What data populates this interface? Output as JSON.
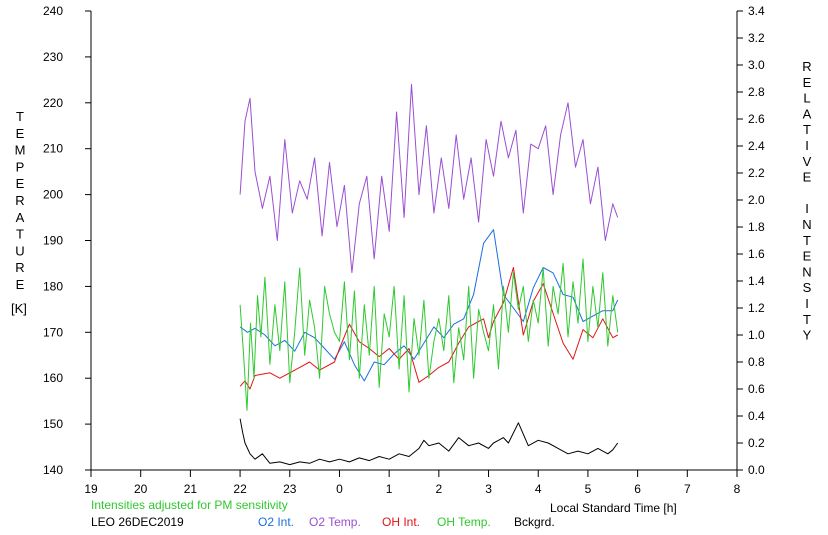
{
  "chart_data": {
    "type": "line",
    "y_left_label_letters": [
      "T",
      "E",
      "M",
      "P",
      "E",
      "R",
      "A",
      "T",
      "U",
      "R",
      "E"
    ],
    "y_left_unit": "[K]",
    "y_right_label_letters": [
      "R",
      "E",
      "L",
      "A",
      "T",
      "I",
      "V",
      "E",
      "",
      "I",
      "N",
      "T",
      "E",
      "N",
      "S",
      "I",
      "T",
      "Y"
    ],
    "xlabel": "Local Standard Time [h]",
    "note": "Intensities adjusted for PM sensitivity",
    "station_date": "LEO 26DEC2019",
    "x_ticks": [
      "19",
      "20",
      "21",
      "22",
      "23",
      "0",
      "1",
      "2",
      "3",
      "4",
      "5",
      "6",
      "7",
      "8"
    ],
    "y_left_ticks": [
      "140",
      "150",
      "160",
      "170",
      "180",
      "190",
      "200",
      "210",
      "220",
      "230",
      "240"
    ],
    "y_right_ticks": [
      "0.0",
      "0.2",
      "0.4",
      "0.6",
      "0.8",
      "1.0",
      "1.2",
      "1.4",
      "1.6",
      "1.8",
      "2.0",
      "2.2",
      "2.4",
      "2.6",
      "2.8",
      "3.0",
      "3.2",
      "3.4"
    ],
    "xlim_hours_since_19": [
      0,
      13
    ],
    "ylim_left": [
      140,
      240
    ],
    "ylim_right": [
      0,
      3.4
    ],
    "grid": false,
    "series": [
      {
        "name": "O2 Int.",
        "axis": "right",
        "color": "#1a6fe0",
        "x": [
          3.0,
          3.15,
          3.3,
          3.5,
          3.7,
          3.9,
          4.1,
          4.3,
          4.5,
          4.7,
          4.9,
          5.1,
          5.3,
          5.5,
          5.7,
          5.9,
          6.1,
          6.3,
          6.5,
          6.7,
          6.9,
          7.1,
          7.3,
          7.5,
          7.7,
          7.9,
          8.1,
          8.3,
          8.5,
          8.7,
          8.9,
          9.1,
          9.3,
          9.5,
          9.7,
          9.9,
          10.1,
          10.3,
          10.5,
          10.6
        ],
        "y": [
          1.06,
          1.02,
          1.05,
          1.0,
          0.92,
          0.96,
          0.88,
          1.02,
          0.98,
          0.9,
          0.82,
          0.95,
          0.78,
          0.66,
          0.8,
          0.78,
          0.86,
          0.92,
          0.82,
          0.94,
          1.06,
          0.98,
          1.08,
          1.12,
          1.3,
          1.68,
          1.78,
          1.3,
          1.2,
          1.1,
          1.35,
          1.5,
          1.46,
          1.3,
          1.28,
          1.1,
          1.14,
          1.18,
          1.18,
          1.26
        ]
      },
      {
        "name": "O2 Temp.",
        "axis": "left",
        "color": "#9a4fd2",
        "x": [
          3.0,
          3.1,
          3.2,
          3.3,
          3.45,
          3.6,
          3.75,
          3.9,
          4.05,
          4.2,
          4.35,
          4.5,
          4.65,
          4.8,
          4.95,
          5.1,
          5.25,
          5.4,
          5.55,
          5.7,
          5.85,
          6.0,
          6.15,
          6.3,
          6.45,
          6.6,
          6.75,
          6.9,
          7.05,
          7.2,
          7.35,
          7.5,
          7.65,
          7.8,
          7.95,
          8.1,
          8.25,
          8.4,
          8.55,
          8.7,
          8.85,
          9.0,
          9.15,
          9.3,
          9.45,
          9.6,
          9.75,
          9.9,
          10.05,
          10.2,
          10.35,
          10.5,
          10.6
        ],
        "y": [
          200,
          216,
          221,
          205,
          197,
          204,
          190,
          212,
          196,
          203,
          199,
          208,
          191,
          207,
          193,
          202,
          183,
          198,
          204,
          186,
          204,
          192,
          218,
          195,
          224,
          200,
          215,
          196,
          208,
          197,
          213,
          199,
          208,
          194,
          212,
          204,
          216,
          208,
          214,
          196,
          211,
          210,
          215,
          200,
          213,
          220,
          206,
          212,
          198,
          206,
          190,
          198,
          195
        ]
      },
      {
        "name": "OH Int.",
        "axis": "right",
        "color": "#e01515",
        "x": [
          3.0,
          3.1,
          3.2,
          3.3,
          3.6,
          3.8,
          4.0,
          4.2,
          4.4,
          4.6,
          4.9,
          5.0,
          5.2,
          5.4,
          5.6,
          5.8,
          6.0,
          6.2,
          6.4,
          6.6,
          6.8,
          7.0,
          7.2,
          7.4,
          7.6,
          7.8,
          7.9,
          8.0,
          8.1,
          8.3,
          8.5,
          8.7,
          8.9,
          9.1,
          9.3,
          9.5,
          9.7,
          9.9,
          10.1,
          10.3,
          10.5,
          10.6
        ],
        "y": [
          0.62,
          0.66,
          0.6,
          0.7,
          0.72,
          0.68,
          0.72,
          0.76,
          0.8,
          0.74,
          0.8,
          0.9,
          1.08,
          0.95,
          0.9,
          0.84,
          0.9,
          0.82,
          0.9,
          0.65,
          0.7,
          0.76,
          0.8,
          0.94,
          1.06,
          1.1,
          1.12,
          0.98,
          1.1,
          1.24,
          1.5,
          1.0,
          1.25,
          1.38,
          1.16,
          0.94,
          0.82,
          1.04,
          0.98,
          1.12,
          0.98,
          1.0
        ]
      },
      {
        "name": "OH Temp.",
        "axis": "left",
        "color": "#2fc92f",
        "x": [
          3.0,
          3.07,
          3.14,
          3.21,
          3.28,
          3.35,
          3.42,
          3.5,
          3.6,
          3.7,
          3.8,
          3.9,
          4.0,
          4.1,
          4.2,
          4.3,
          4.4,
          4.5,
          4.6,
          4.7,
          4.8,
          4.9,
          5.0,
          5.1,
          5.2,
          5.3,
          5.4,
          5.5,
          5.6,
          5.7,
          5.8,
          5.9,
          6.0,
          6.1,
          6.2,
          6.3,
          6.4,
          6.5,
          6.6,
          6.7,
          6.8,
          6.9,
          7.0,
          7.1,
          7.2,
          7.3,
          7.4,
          7.5,
          7.6,
          7.7,
          7.8,
          7.9,
          8.0,
          8.1,
          8.2,
          8.3,
          8.4,
          8.5,
          8.6,
          8.7,
          8.8,
          8.9,
          9.0,
          9.1,
          9.2,
          9.3,
          9.4,
          9.5,
          9.6,
          9.7,
          9.8,
          9.9,
          10.0,
          10.1,
          10.2,
          10.3,
          10.4,
          10.5,
          10.6
        ],
        "y": [
          176,
          165,
          153,
          172,
          160,
          178,
          169,
          182,
          163,
          176,
          166,
          181,
          159,
          170,
          184,
          165,
          177,
          171,
          160,
          180,
          174,
          170,
          168,
          181,
          164,
          179,
          160,
          176,
          165,
          180,
          158,
          174,
          169,
          180,
          162,
          178,
          157,
          173,
          165,
          177,
          160,
          168,
          173,
          166,
          178,
          159,
          171,
          164,
          180,
          160,
          175,
          170,
          166,
          176,
          162,
          180,
          170,
          183,
          175,
          180,
          168,
          177,
          172,
          184,
          167,
          180,
          174,
          185,
          169,
          181,
          172,
          186,
          168,
          180,
          171,
          183,
          167,
          178,
          170
        ]
      },
      {
        "name": "Bckgrd.",
        "axis": "right",
        "color": "#000000",
        "x": [
          3.0,
          3.05,
          3.1,
          3.2,
          3.3,
          3.45,
          3.6,
          3.8,
          4.0,
          4.2,
          4.4,
          4.6,
          4.8,
          5.0,
          5.2,
          5.4,
          5.6,
          5.8,
          6.0,
          6.2,
          6.4,
          6.6,
          6.7,
          6.8,
          7.0,
          7.2,
          7.4,
          7.6,
          7.8,
          8.0,
          8.1,
          8.2,
          8.3,
          8.4,
          8.6,
          8.8,
          9.0,
          9.2,
          9.4,
          9.6,
          9.8,
          10.0,
          10.2,
          10.4,
          10.5,
          10.6
        ],
        "y": [
          0.38,
          0.28,
          0.2,
          0.12,
          0.08,
          0.12,
          0.05,
          0.06,
          0.04,
          0.06,
          0.05,
          0.08,
          0.06,
          0.08,
          0.06,
          0.09,
          0.07,
          0.1,
          0.08,
          0.12,
          0.1,
          0.16,
          0.22,
          0.18,
          0.2,
          0.14,
          0.24,
          0.18,
          0.2,
          0.16,
          0.2,
          0.22,
          0.24,
          0.2,
          0.35,
          0.18,
          0.22,
          0.2,
          0.16,
          0.12,
          0.14,
          0.12,
          0.16,
          0.12,
          0.15,
          0.2
        ]
      }
    ]
  }
}
